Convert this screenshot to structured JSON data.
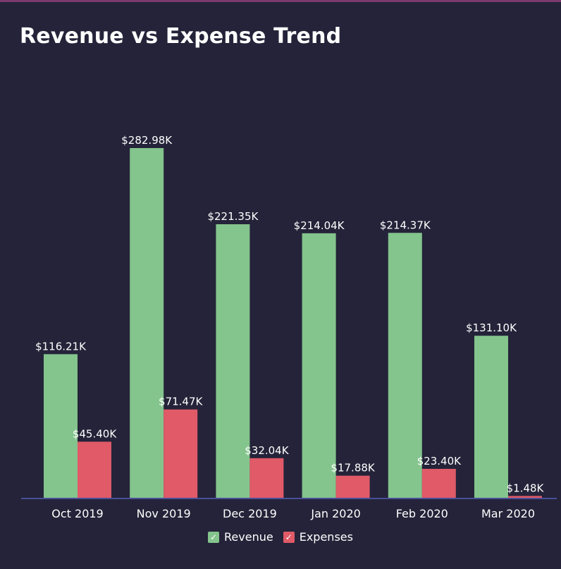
{
  "chart_data": {
    "type": "bar",
    "title": "Revenue vs Expense Trend",
    "categories": [
      "Oct 2019",
      "Nov 2019",
      "Dec 2019",
      "Jan 2020",
      "Feb 2020",
      "Mar 2020"
    ],
    "series": [
      {
        "name": "Revenue",
        "color": "#84c48d",
        "values": [
          116.21,
          282.98,
          221.35,
          214.04,
          214.37,
          131.1
        ],
        "labels": [
          "$116.21K",
          "$282.98K",
          "$221.35K",
          "$214.04K",
          "$214.37K",
          "$131.10K"
        ]
      },
      {
        "name": "Expenses",
        "color": "#e05a68",
        "values": [
          45.4,
          71.47,
          32.04,
          17.88,
          23.4,
          1.48
        ],
        "labels": [
          "$45.40K",
          "$71.47K",
          "$32.04K",
          "$17.88K",
          "$23.40K",
          "$1.48K"
        ]
      }
    ],
    "ylim": [
      0,
      300
    ],
    "grid": false,
    "legend_position": "bottom-center"
  },
  "legend": {
    "items": [
      {
        "label": "Revenue",
        "color": "#84c48d",
        "icon": "check-icon"
      },
      {
        "label": "Expenses",
        "color": "#e05a68",
        "icon": "check-icon"
      }
    ]
  },
  "colors": {
    "background": "#242339",
    "axis": "#4a4f9a",
    "text": "#ffffff"
  }
}
